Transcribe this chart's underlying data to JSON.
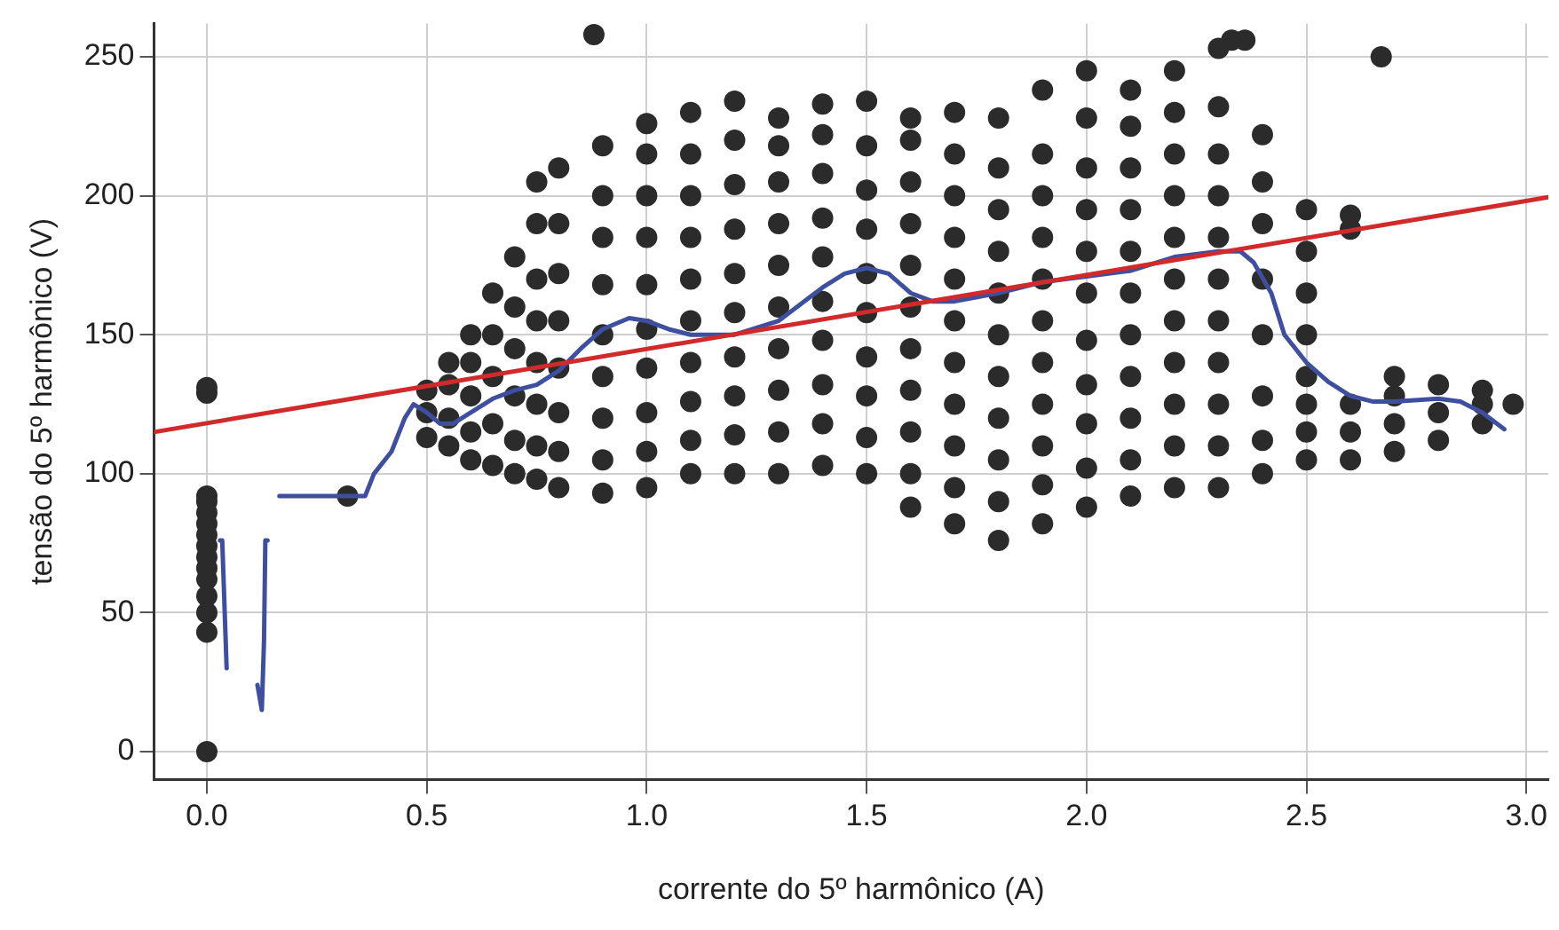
{
  "chart_data": {
    "type": "scatter",
    "xlabel": "corrente do 5º harmônico (A)",
    "ylabel": "tensão do 5º harmônico (V)",
    "xlim": [
      -0.12,
      3.05
    ],
    "ylim": [
      -10,
      262
    ],
    "xticks": [
      {
        "value": 0,
        "label": "0.0"
      },
      0.5,
      {
        "value": 1,
        "label": "1.0"
      },
      1.5,
      {
        "value": 2,
        "label": "2.0"
      },
      2.5,
      {
        "value": 3,
        "label": "3.0"
      }
    ],
    "yticks": [
      0,
      50,
      100,
      150,
      200,
      250
    ],
    "grid": true,
    "series": [
      {
        "color": "#2b2b2b",
        "marker": "circle",
        "x": [
          0,
          0,
          0,
          0,
          0,
          0,
          0,
          0,
          0,
          0,
          0,
          0,
          0,
          0,
          0,
          0.32,
          0.5,
          0.5,
          0.5,
          0.55,
          0.55,
          0.55,
          0.55,
          0.6,
          0.6,
          0.6,
          0.6,
          0.6,
          0.65,
          0.65,
          0.65,
          0.65,
          0.65,
          0.7,
          0.7,
          0.7,
          0.7,
          0.7,
          0.7,
          0.75,
          0.75,
          0.75,
          0.75,
          0.75,
          0.75,
          0.75,
          0.75,
          0.8,
          0.8,
          0.8,
          0.8,
          0.8,
          0.8,
          0.8,
          0.8,
          0.88,
          0.9,
          0.9,
          0.9,
          0.9,
          0.9,
          0.9,
          0.9,
          0.9,
          0.9,
          1.0,
          1.0,
          1.0,
          1.0,
          1.0,
          1.0,
          1.0,
          1.0,
          1.0,
          1.0,
          1.1,
          1.1,
          1.1,
          1.1,
          1.1,
          1.1,
          1.1,
          1.1,
          1.1,
          1.1,
          1.2,
          1.2,
          1.2,
          1.2,
          1.2,
          1.2,
          1.2,
          1.2,
          1.2,
          1.2,
          1.3,
          1.3,
          1.3,
          1.3,
          1.3,
          1.3,
          1.3,
          1.3,
          1.3,
          1.3,
          1.4,
          1.4,
          1.4,
          1.4,
          1.4,
          1.4,
          1.4,
          1.4,
          1.4,
          1.4,
          1.5,
          1.5,
          1.5,
          1.5,
          1.5,
          1.5,
          1.5,
          1.5,
          1.5,
          1.5,
          1.6,
          1.6,
          1.6,
          1.6,
          1.6,
          1.6,
          1.6,
          1.6,
          1.6,
          1.6,
          1.6,
          1.7,
          1.7,
          1.7,
          1.7,
          1.7,
          1.7,
          1.7,
          1.7,
          1.7,
          1.7,
          1.7,
          1.8,
          1.8,
          1.8,
          1.8,
          1.8,
          1.8,
          1.8,
          1.8,
          1.8,
          1.8,
          1.8,
          1.9,
          1.9,
          1.9,
          1.9,
          1.9,
          1.9,
          1.9,
          1.9,
          1.9,
          1.9,
          1.9,
          2.0,
          2.0,
          2.0,
          2.0,
          2.0,
          2.0,
          2.0,
          2.0,
          2.0,
          2.0,
          2.0,
          2.1,
          2.1,
          2.1,
          2.1,
          2.1,
          2.1,
          2.1,
          2.1,
          2.1,
          2.1,
          2.1,
          2.2,
          2.2,
          2.2,
          2.2,
          2.2,
          2.2,
          2.2,
          2.2,
          2.2,
          2.2,
          2.2,
          2.3,
          2.3,
          2.3,
          2.3,
          2.3,
          2.3,
          2.3,
          2.3,
          2.3,
          2.3,
          2.3,
          2.33,
          2.36,
          2.4,
          2.4,
          2.4,
          2.4,
          2.4,
          2.4,
          2.4,
          2.4,
          2.5,
          2.5,
          2.5,
          2.5,
          2.5,
          2.5,
          2.5,
          2.5,
          2.6,
          2.6,
          2.6,
          2.6,
          2.6,
          2.67,
          2.7,
          2.7,
          2.7,
          2.7,
          2.8,
          2.8,
          2.8,
          2.9,
          2.9,
          2.9,
          2.97
        ],
        "values": [
          0,
          43,
          50,
          56,
          62,
          66,
          70,
          74,
          78,
          82,
          86,
          90,
          92,
          129,
          131,
          92,
          113,
          122,
          130,
          110,
          120,
          132,
          140,
          105,
          115,
          128,
          140,
          150,
          103,
          118,
          135,
          150,
          165,
          100,
          112,
          128,
          145,
          160,
          178,
          98,
          110,
          125,
          140,
          155,
          170,
          190,
          205,
          95,
          108,
          122,
          138,
          155,
          172,
          190,
          210,
          258,
          93,
          105,
          120,
          135,
          150,
          168,
          185,
          200,
          218,
          95,
          108,
          122,
          138,
          152,
          168,
          185,
          200,
          215,
          226,
          100,
          112,
          126,
          140,
          155,
          170,
          185,
          200,
          215,
          230,
          100,
          114,
          128,
          142,
          158,
          172,
          188,
          204,
          220,
          234,
          100,
          115,
          130,
          145,
          160,
          175,
          190,
          205,
          218,
          228,
          103,
          118,
          132,
          148,
          162,
          178,
          192,
          208,
          222,
          233,
          100,
          113,
          128,
          142,
          158,
          172,
          188,
          202,
          218,
          234,
          88,
          100,
          115,
          130,
          145,
          160,
          175,
          190,
          205,
          220,
          228,
          82,
          95,
          110,
          125,
          140,
          155,
          170,
          185,
          200,
          215,
          230,
          76,
          90,
          105,
          120,
          135,
          150,
          165,
          180,
          195,
          210,
          228,
          82,
          96,
          110,
          125,
          140,
          155,
          170,
          185,
          200,
          215,
          238,
          88,
          102,
          118,
          132,
          148,
          165,
          180,
          195,
          210,
          228,
          245,
          92,
          105,
          120,
          135,
          150,
          165,
          180,
          195,
          210,
          225,
          238,
          95,
          110,
          125,
          140,
          155,
          170,
          185,
          200,
          215,
          230,
          245,
          95,
          110,
          125,
          140,
          155,
          170,
          185,
          200,
          215,
          232,
          253,
          256,
          256,
          100,
          112,
          128,
          150,
          170,
          190,
          205,
          222,
          105,
          115,
          125,
          135,
          150,
          165,
          180,
          195,
          105,
          115,
          125,
          188,
          193,
          250,
          108,
          118,
          128,
          135,
          112,
          122,
          132,
          118,
          125,
          130,
          125
        ]
      },
      {
        "type": "line",
        "color": "#d02a2a",
        "x": [
          -0.12,
          3.05
        ],
        "values": [
          115,
          199.5
        ]
      },
      {
        "type": "line",
        "color": "#3f4fa0",
        "x": [
          0.03,
          0.035,
          0.045,
          0.1,
          0.115,
          0.125,
          0.13,
          0.133,
          0.138,
          0.15,
          0.165,
          0.25,
          0.36,
          0.38,
          0.42,
          0.45,
          0.47,
          0.5,
          0.53,
          0.56,
          0.6,
          0.65,
          0.7,
          0.75,
          0.8,
          0.85,
          0.9,
          0.96,
          1.0,
          1.05,
          1.1,
          1.2,
          1.3,
          1.4,
          1.45,
          1.5,
          1.55,
          1.6,
          1.65,
          1.7,
          1.8,
          1.9,
          2.0,
          2.1,
          2.2,
          2.3,
          2.35,
          2.38,
          2.42,
          2.45,
          2.5,
          2.55,
          2.6,
          2.65,
          2.7,
          2.8,
          2.85,
          2.9,
          2.95
        ],
        "values": [
          76,
          76,
          30,
          null,
          24,
          15,
          40,
          76,
          76,
          null,
          92,
          92,
          92,
          100,
          108,
          120,
          125,
          122,
          118,
          118,
          122,
          127,
          130,
          132,
          137,
          145,
          152,
          156,
          155,
          152,
          150,
          150,
          155,
          167,
          172,
          174,
          172,
          165,
          162,
          162,
          165,
          169,
          171,
          173,
          178,
          180,
          180,
          176,
          165,
          150,
          140,
          133,
          128,
          126,
          126,
          127,
          126,
          122,
          116
        ]
      }
    ]
  }
}
